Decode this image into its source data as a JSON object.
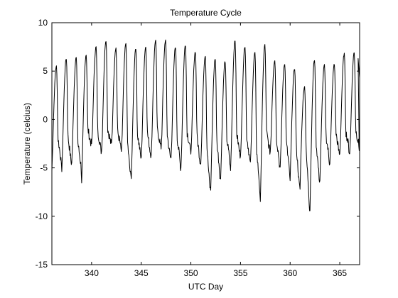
{
  "chart_data": {
    "type": "line",
    "title": "Temperature Cycle",
    "xlabel": "UTC Day",
    "ylabel": "Temperature (celcius)",
    "xlim": [
      336,
      367
    ],
    "ylim": [
      -15,
      10
    ],
    "x_ticks": [
      340,
      345,
      350,
      355,
      360,
      365
    ],
    "x_tick_labels": [
      "340",
      "345",
      "350",
      "355",
      "360",
      "365"
    ],
    "y_ticks": [
      -15,
      -10,
      -5,
      0,
      5,
      10
    ],
    "y_tick_labels": [
      "-15",
      "-10",
      "-5",
      "0",
      "5",
      "10"
    ],
    "grid": false,
    "series": [
      {
        "color": "#000000",
        "daily_max": [
          5.5,
          6.3,
          6.4,
          6.7,
          7.5,
          8.2,
          7.4,
          7.8,
          7.4,
          7.5,
          8.2,
          8.2,
          7.5,
          7.7,
          7.0,
          6.6,
          6.3,
          6.0,
          8.2,
          7.6,
          6.9,
          7.7,
          6.1,
          5.8,
          5.3,
          3.4,
          6.2,
          5.6,
          5.7,
          6.8,
          6.9
        ],
        "daily_min": [
          -5.3,
          -4.5,
          -6.5,
          -2.5,
          -3.3,
          -2.5,
          -3.3,
          -6.0,
          -4.0,
          -3.6,
          -3.0,
          -4.0,
          -5.0,
          -3.5,
          -4.5,
          -7.3,
          -6.2,
          -5.2,
          -3.7,
          -4.5,
          -8.6,
          -3.3,
          -5.0,
          -6.3,
          -7.2,
          -9.4,
          -6.3,
          -4.5,
          -3.6,
          -3.5,
          -3.0
        ],
        "daily_min_position": [
          0.9,
          0.82,
          0.95,
          0.8,
          0.85,
          0.82,
          0.88,
          0.8,
          0.85,
          0.82,
          0.88,
          0.8,
          0.85,
          0.88,
          0.82,
          0.8,
          0.85,
          0.88,
          0.82,
          0.85,
          0.9,
          0.82,
          0.85,
          0.88,
          0.82,
          0.86,
          0.82,
          0.85,
          0.82,
          0.88,
          0.85
        ],
        "first_day": 336,
        "end_x": 367,
        "end_y": 4.3
      }
    ]
  }
}
